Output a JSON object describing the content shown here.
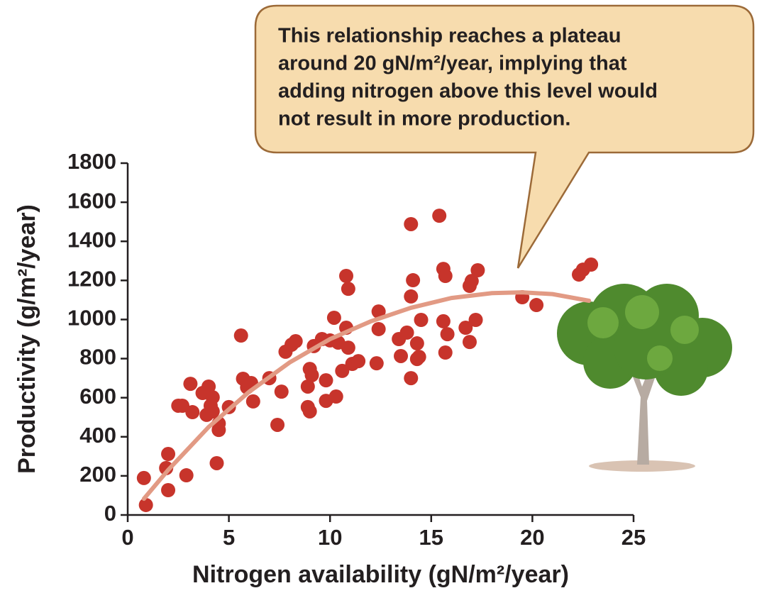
{
  "chart_data": {
    "type": "scatter",
    "annotation": [
      "This relationship reaches a plateau",
      "around 20 gN/m²/year, implying that",
      "adding nitrogen above this level would",
      "not result in more production."
    ],
    "x_label": "Nitrogen availability (gN/m²/year)",
    "y_label": "Productivity (g/m²/year)",
    "xlim": [
      0,
      25
    ],
    "xticks": [
      0,
      5,
      10,
      15,
      20,
      25
    ],
    "ylim": [
      0,
      1800
    ],
    "yticks": [
      0,
      200,
      400,
      600,
      800,
      1000,
      1200,
      1400,
      1600,
      1800
    ],
    "series": [
      {
        "mode": "markers",
        "color": "#c7342b",
        "x": [
          0.8,
          0.9,
          2.0,
          1.9,
          2.0,
          2.5,
          2.7,
          2.9,
          3.1,
          3.2,
          3.7,
          3.9,
          4.0,
          4.1,
          4.2,
          4.2,
          4.5,
          4.5,
          4.4,
          5.0,
          5.6,
          5.7,
          5.9,
          6.1,
          6.2,
          7.0,
          7.4,
          7.6,
          7.8,
          8.1,
          8.3,
          8.9,
          9.0,
          9.0,
          9.1,
          8.9,
          9.2,
          9.6,
          9.8,
          9.8,
          10.0,
          10.2,
          10.3,
          10.4,
          10.6,
          10.8,
          10.8,
          10.9,
          10.9,
          11.1,
          11.4,
          12.3,
          12.4,
          12.4,
          13.4,
          13.5,
          13.8,
          14.0,
          14.0,
          14.0,
          14.1,
          14.3,
          14.3,
          14.4,
          14.5,
          15.4,
          15.6,
          15.7,
          15.6,
          15.7,
          15.8,
          16.7,
          16.9,
          16.9,
          17.0,
          17.2,
          17.3,
          19.5,
          20.2,
          22.3,
          22.5,
          22.9
        ],
        "values": [
          189,
          51,
          312,
          240,
          127,
          559,
          559,
          203,
          671,
          526,
          624,
          512,
          657,
          559,
          602,
          530,
          468,
          435,
          265,
          552,
          918,
          697,
          653,
          675,
          581,
          700,
          461,
          631,
          835,
          871,
          889,
          552,
          530,
          747,
          715,
          657,
          864,
          900,
          689,
          584,
          893,
          1009,
          606,
          882,
          737,
          1223,
          958,
          856,
          1157,
          773,
          787,
          776,
          951,
          1041,
          900,
          813,
          933,
          1488,
          700,
          1118,
          1201,
          878,
          798,
          809,
          998,
          1531,
          1259,
          1223,
          991,
          831,
          925,
          958,
          885,
          1172,
          1197,
          998,
          1252,
          1114,
          1074,
          1230,
          1255,
          1281
        ]
      },
      {
        "mode": "line",
        "color": "#e29a84",
        "x": [
          0.8,
          2,
          4,
          6,
          8,
          10,
          12,
          14,
          16,
          18,
          19.5,
          21,
          22.8
        ],
        "values": [
          83,
          230,
          450,
          630,
          780,
          900,
          990,
          1060,
          1110,
          1135,
          1139,
          1130,
          1096
        ]
      }
    ]
  }
}
